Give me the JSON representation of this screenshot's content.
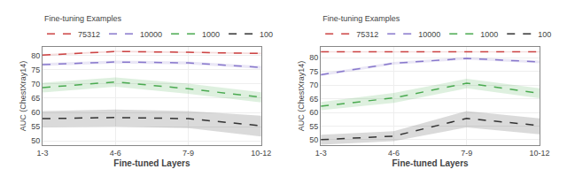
{
  "chart_data": [
    {
      "type": "line",
      "xlabel": "Fine-tuned Layers",
      "ylabel": "AUC (ChestXray14)",
      "legend_title": "Fine-tuning Examples",
      "legend": "upper left",
      "grid": true,
      "categories": [
        "1-3",
        "4-6",
        "7-9",
        "10-12"
      ],
      "ylim": [
        48.5,
        83
      ],
      "yticks": [
        50,
        55,
        60,
        65,
        70,
        75,
        80
      ],
      "series": [
        {
          "name": "100",
          "color": "#333333",
          "line_style": "dashed",
          "values": [
            57.8,
            58.2,
            57.8,
            55.3
          ],
          "lower": [
            54.8,
            55.0,
            54.5,
            51.5
          ],
          "upper": [
            60.5,
            61.0,
            60.5,
            58.8
          ]
        },
        {
          "name": "1000",
          "color": "#4aaa50",
          "line_style": "dashed",
          "values": [
            68.7,
            70.7,
            68.3,
            65.3
          ],
          "lower": [
            67.0,
            69.0,
            66.5,
            63.5
          ],
          "upper": [
            70.4,
            72.3,
            70.1,
            67.1
          ]
        },
        {
          "name": "10000",
          "color": "#8878cc",
          "line_style": "dashed",
          "values": [
            76.8,
            77.7,
            77.4,
            75.8
          ],
          "lower": [
            76.3,
            77.2,
            76.9,
            75.3
          ],
          "upper": [
            77.3,
            78.2,
            77.9,
            76.3
          ]
        },
        {
          "name": "75312",
          "color": "#cc4444",
          "line_style": "dashed",
          "values": [
            80.1,
            81.4,
            81.1,
            80.7
          ],
          "lower": [
            79.8,
            81.1,
            80.8,
            80.4
          ],
          "upper": [
            80.4,
            81.7,
            81.4,
            81.0
          ]
        }
      ]
    },
    {
      "type": "line",
      "xlabel": "Fine-tuned Layers",
      "ylabel": "AUC (ChestXray14)",
      "legend_title": "Fine-tuning Examples",
      "legend": "upper left",
      "grid": true,
      "categories": [
        "1-3",
        "4-6",
        "7-9",
        "10-12"
      ],
      "ylim": [
        48,
        84
      ],
      "yticks": [
        50,
        55,
        60,
        65,
        70,
        75,
        80
      ],
      "series": [
        {
          "name": "100",
          "color": "#333333",
          "line_style": "dashed",
          "values": [
            50.0,
            51.3,
            57.8,
            55.2
          ],
          "lower": [
            48.2,
            49.5,
            54.5,
            52.0
          ],
          "upper": [
            51.8,
            53.1,
            60.5,
            57.8
          ]
        },
        {
          "name": "1000",
          "color": "#4aaa50",
          "line_style": "dashed",
          "values": [
            62.3,
            65.3,
            70.7,
            67.0
          ],
          "lower": [
            60.8,
            63.5,
            68.8,
            65.2
          ],
          "upper": [
            63.8,
            67.1,
            72.3,
            68.8
          ]
        },
        {
          "name": "10000",
          "color": "#8878cc",
          "line_style": "dashed",
          "values": [
            73.8,
            78.0,
            79.8,
            78.5
          ],
          "lower": [
            73.3,
            77.5,
            79.3,
            78.0
          ],
          "upper": [
            74.3,
            78.5,
            80.3,
            79.0
          ]
        },
        {
          "name": "75312",
          "color": "#cc4444",
          "line_style": "dashed",
          "values": [
            82.2,
            82.2,
            82.2,
            82.2
          ],
          "lower": [
            82.0,
            82.0,
            82.0,
            82.0
          ],
          "upper": [
            82.4,
            82.4,
            82.4,
            82.4
          ]
        }
      ]
    }
  ]
}
